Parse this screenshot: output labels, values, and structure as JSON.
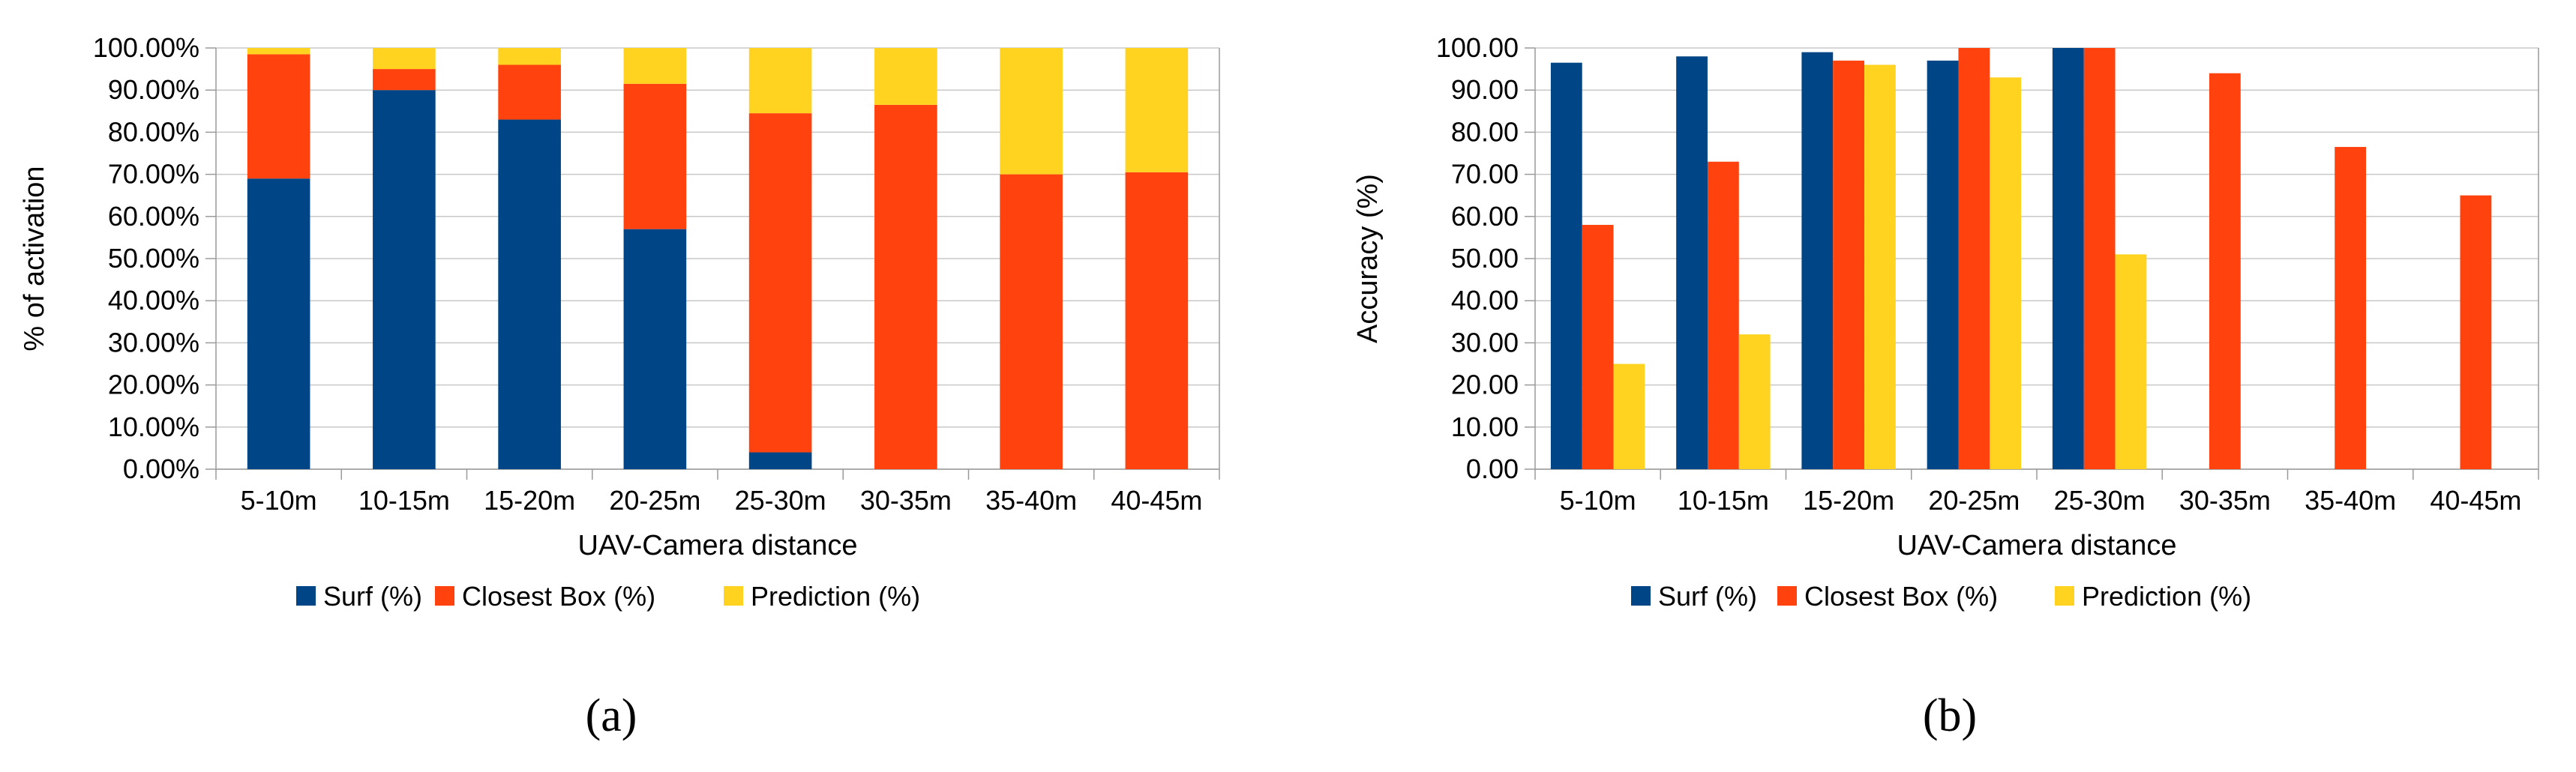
{
  "colors": {
    "surf": "#004586",
    "closest": "#ff420e",
    "prediction": "#ffd320"
  },
  "chart_data": [
    {
      "type": "bar",
      "stacked": true,
      "caption": "(a)",
      "xlabel": "UAV-Camera distance",
      "ylabel": "% of activation",
      "ylim": [
        0,
        100
      ],
      "yticks": [
        "0.00%",
        "10.00%",
        "20.00%",
        "30.00%",
        "40.00%",
        "50.00%",
        "60.00%",
        "70.00%",
        "80.00%",
        "90.00%",
        "100.00%"
      ],
      "categories": [
        "5-10m",
        "10-15m",
        "15-20m",
        "20-25m",
        "25-30m",
        "30-35m",
        "35-40m",
        "40-45m"
      ],
      "series": [
        {
          "name": "Surf (%)",
          "values": [
            69,
            90,
            83,
            57,
            4,
            0,
            0,
            0
          ]
        },
        {
          "name": "Closest Box (%)",
          "values": [
            29.5,
            5,
            13,
            34.5,
            80.5,
            86.5,
            70,
            70.5
          ]
        },
        {
          "name": "Prediction (%)",
          "values": [
            1.5,
            5,
            4,
            8.5,
            15.5,
            13.5,
            30,
            29.5
          ]
        }
      ],
      "grid": true,
      "legend": "bottom"
    },
    {
      "type": "bar",
      "stacked": false,
      "caption": "(b)",
      "xlabel": "UAV-Camera distance",
      "ylabel": "Accuracy (%)",
      "ylim": [
        0,
        100
      ],
      "yticks": [
        "0.00",
        "10.00",
        "20.00",
        "30.00",
        "40.00",
        "50.00",
        "60.00",
        "70.00",
        "80.00",
        "90.00",
        "100.00"
      ],
      "categories": [
        "5-10m",
        "10-15m",
        "15-20m",
        "20-25m",
        "25-30m",
        "30-35m",
        "35-40m",
        "40-45m"
      ],
      "series": [
        {
          "name": "Surf (%)",
          "values": [
            96.5,
            98,
            99,
            97,
            100,
            0,
            0,
            0
          ]
        },
        {
          "name": "Closest Box (%)",
          "values": [
            58,
            73,
            97,
            100,
            100,
            94,
            76.5,
            65
          ]
        },
        {
          "name": "Prediction (%)",
          "values": [
            25,
            32,
            96,
            93,
            51,
            0,
            0,
            0
          ]
        }
      ],
      "grid": true,
      "legend": "bottom"
    }
  ]
}
